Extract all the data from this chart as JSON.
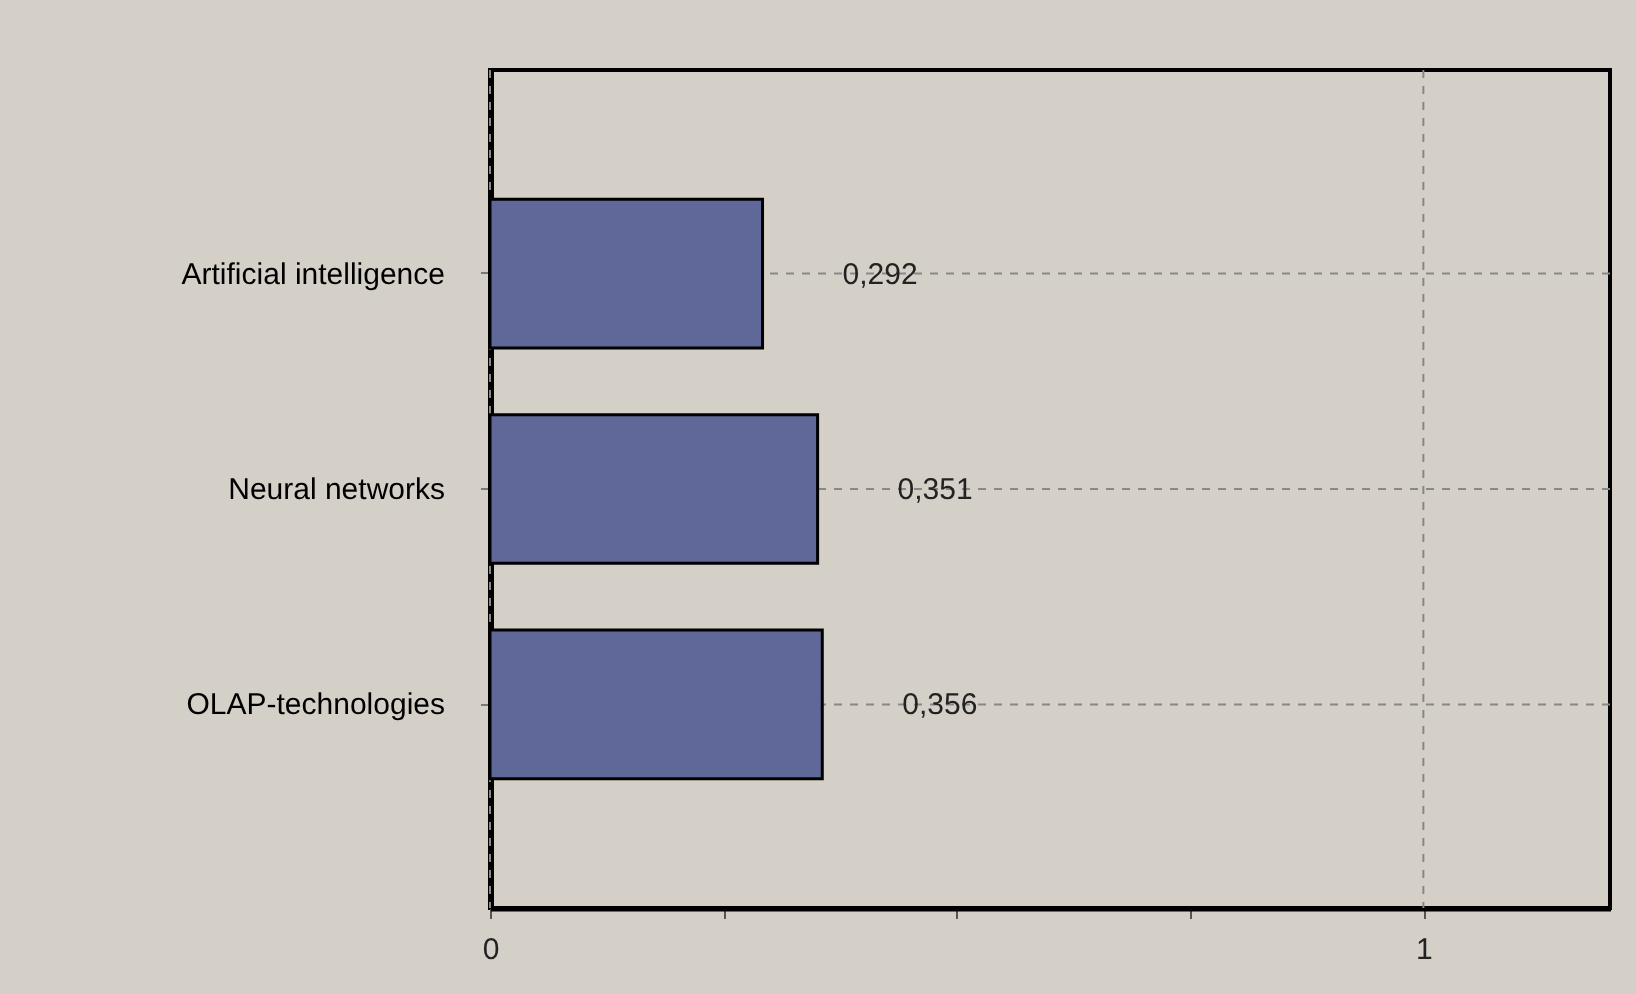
{
  "chart_data": {
    "type": "bar",
    "orientation": "horizontal",
    "categories": [
      "Artificial intelligence",
      "Neural networks",
      "OLAP-technologies"
    ],
    "values": [
      0.292,
      0.351,
      0.356
    ],
    "value_labels": [
      "0,292",
      "0,351",
      "0,356"
    ],
    "color": "#5f6899",
    "xlim": [
      0,
      1.2
    ],
    "xticks": [
      0,
      {
        "value": 0.25,
        "label": null
      },
      {
        "value": 0.5,
        "label": null
      },
      {
        "value": 0.75,
        "label": null
      },
      1
    ],
    "grid": true
  }
}
